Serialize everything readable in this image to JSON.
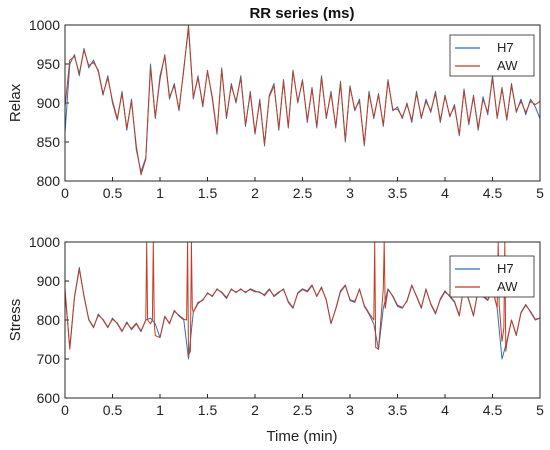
{
  "chart_data": [
    {
      "type": "line",
      "title": "RR series (ms)",
      "xlabel": "",
      "ylabel": "Relax",
      "xlim": [
        0,
        5
      ],
      "ylim": [
        800,
        1000
      ],
      "xticks": [
        "0",
        "0.5",
        "1",
        "1.5",
        "2",
        "2.5",
        "3",
        "3.5",
        "4",
        "4.5",
        "5"
      ],
      "yticks": [
        "800",
        "850",
        "900",
        "950",
        "1000"
      ],
      "grid": false,
      "legend_position": "top-right",
      "series": [
        {
          "name": "H7",
          "color": "#2f6fb5",
          "x": [
            0,
            0.05,
            0.1,
            0.15,
            0.2,
            0.25,
            0.3,
            0.35,
            0.4,
            0.45,
            0.5,
            0.55,
            0.6,
            0.65,
            0.7,
            0.75,
            0.8,
            0.85,
            0.9,
            0.95,
            1.0,
            1.05,
            1.1,
            1.15,
            1.2,
            1.25,
            1.3,
            1.35,
            1.4,
            1.45,
            1.5,
            1.55,
            1.6,
            1.65,
            1.7,
            1.75,
            1.8,
            1.85,
            1.9,
            1.95,
            2.0,
            2.05,
            2.1,
            2.15,
            2.2,
            2.25,
            2.3,
            2.35,
            2.4,
            2.45,
            2.5,
            2.55,
            2.6,
            2.65,
            2.7,
            2.75,
            2.8,
            2.85,
            2.9,
            2.95,
            3.0,
            3.05,
            3.1,
            3.15,
            3.2,
            3.25,
            3.3,
            3.35,
            3.4,
            3.45,
            3.5,
            3.55,
            3.6,
            3.65,
            3.7,
            3.75,
            3.8,
            3.85,
            3.9,
            3.95,
            4.0,
            4.05,
            4.1,
            4.15,
            4.2,
            4.25,
            4.3,
            4.35,
            4.4,
            4.45,
            4.5,
            4.55,
            4.6,
            4.65,
            4.7,
            4.75,
            4.8,
            4.85,
            4.9,
            4.95,
            5.0
          ],
          "y": [
            862,
            950,
            962,
            935,
            970,
            945,
            955,
            940,
            910,
            935,
            900,
            878,
            915,
            865,
            905,
            840,
            812,
            830,
            950,
            880,
            935,
            960,
            905,
            925,
            890,
            945,
            995,
            905,
            935,
            895,
            942,
            905,
            860,
            945,
            880,
            925,
            900,
            935,
            870,
            915,
            860,
            905,
            845,
            910,
            925,
            865,
            930,
            868,
            942,
            900,
            930,
            875,
            920,
            868,
            935,
            880,
            915,
            868,
            928,
            850,
            922,
            890,
            905,
            845,
            915,
            880,
            912,
            870,
            930,
            890,
            895,
            880,
            900,
            875,
            915,
            880,
            905,
            888,
            915,
            875,
            910,
            882,
            898,
            858,
            918,
            872,
            910,
            865,
            908,
            885,
            935,
            880,
            920,
            878,
            925,
            888,
            905,
            885,
            905,
            895,
            880
          ]
        },
        {
          "name": "AW",
          "color": "#c23b22",
          "x": [
            0,
            0.05,
            0.1,
            0.15,
            0.2,
            0.25,
            0.3,
            0.35,
            0.4,
            0.45,
            0.5,
            0.55,
            0.6,
            0.65,
            0.7,
            0.75,
            0.8,
            0.85,
            0.9,
            0.95,
            1.0,
            1.05,
            1.1,
            1.15,
            1.2,
            1.25,
            1.3,
            1.35,
            1.4,
            1.45,
            1.5,
            1.55,
            1.6,
            1.65,
            1.7,
            1.75,
            1.8,
            1.85,
            1.9,
            1.95,
            2.0,
            2.05,
            2.1,
            2.15,
            2.2,
            2.25,
            2.3,
            2.35,
            2.4,
            2.45,
            2.5,
            2.55,
            2.6,
            2.65,
            2.7,
            2.75,
            2.8,
            2.85,
            2.9,
            2.95,
            3.0,
            3.05,
            3.1,
            3.15,
            3.2,
            3.25,
            3.3,
            3.35,
            3.4,
            3.45,
            3.5,
            3.55,
            3.6,
            3.65,
            3.7,
            3.75,
            3.8,
            3.85,
            3.9,
            3.95,
            4.0,
            4.05,
            4.1,
            4.15,
            4.2,
            4.25,
            4.3,
            4.35,
            4.4,
            4.45,
            4.5,
            4.55,
            4.6,
            4.65,
            4.7,
            4.75,
            4.8,
            4.85,
            4.9,
            4.95,
            5.0
          ],
          "y": [
            895,
            955,
            960,
            938,
            968,
            948,
            952,
            942,
            912,
            932,
            903,
            880,
            912,
            868,
            902,
            845,
            808,
            828,
            945,
            882,
            930,
            962,
            908,
            922,
            892,
            942,
            1000,
            908,
            932,
            898,
            940,
            908,
            862,
            942,
            882,
            922,
            902,
            932,
            872,
            912,
            862,
            902,
            848,
            908,
            922,
            868,
            928,
            870,
            940,
            902,
            928,
            878,
            918,
            870,
            932,
            882,
            912,
            870,
            925,
            853,
            920,
            892,
            902,
            848,
            912,
            882,
            910,
            872,
            928,
            892,
            892,
            882,
            898,
            878,
            912,
            882,
            902,
            890,
            912,
            878,
            908,
            884,
            895,
            860,
            915,
            875,
            908,
            868,
            905,
            888,
            932,
            882,
            918,
            880,
            922,
            890,
            902,
            888,
            902,
            898,
            902
          ]
        }
      ]
    },
    {
      "type": "line",
      "title": "",
      "xlabel": "Time (min)",
      "ylabel": "Stress",
      "xlim": [
        0,
        5
      ],
      "ylim": [
        600,
        1000
      ],
      "xticks": [
        "0",
        "0.5",
        "1",
        "1.5",
        "2",
        "2.5",
        "3",
        "3.5",
        "4",
        "4.5",
        "5"
      ],
      "yticks": [
        "600",
        "700",
        "800",
        "900",
        "1000"
      ],
      "grid": false,
      "legend_position": "top-right",
      "series": [
        {
          "name": "H7",
          "color": "#2f6fb5",
          "x": [
            0,
            0.05,
            0.1,
            0.15,
            0.2,
            0.25,
            0.3,
            0.35,
            0.4,
            0.45,
            0.5,
            0.55,
            0.6,
            0.65,
            0.7,
            0.75,
            0.8,
            0.85,
            0.9,
            0.95,
            1.0,
            1.05,
            1.1,
            1.15,
            1.2,
            1.25,
            1.3,
            1.35,
            1.4,
            1.45,
            1.5,
            1.55,
            1.6,
            1.65,
            1.7,
            1.75,
            1.8,
            1.85,
            1.9,
            1.95,
            2.0,
            2.05,
            2.1,
            2.15,
            2.2,
            2.25,
            2.3,
            2.35,
            2.4,
            2.45,
            2.5,
            2.55,
            2.6,
            2.65,
            2.7,
            2.75,
            2.8,
            2.85,
            2.9,
            2.95,
            3.0,
            3.05,
            3.1,
            3.15,
            3.2,
            3.25,
            3.3,
            3.35,
            3.4,
            3.45,
            3.5,
            3.55,
            3.6,
            3.65,
            3.7,
            3.75,
            3.8,
            3.85,
            3.9,
            3.95,
            4.0,
            4.05,
            4.1,
            4.15,
            4.2,
            4.25,
            4.3,
            4.35,
            4.4,
            4.45,
            4.5,
            4.55,
            4.6,
            4.65,
            4.7,
            4.75,
            4.8,
            4.85,
            4.9,
            4.95,
            5.0
          ],
          "y": [
            870,
            730,
            860,
            935,
            860,
            800,
            780,
            815,
            800,
            780,
            805,
            790,
            770,
            795,
            775,
            790,
            770,
            800,
            805,
            790,
            755,
            810,
            790,
            825,
            810,
            800,
            700,
            820,
            845,
            850,
            870,
            860,
            880,
            870,
            855,
            880,
            870,
            880,
            870,
            880,
            875,
            870,
            865,
            880,
            860,
            870,
            880,
            845,
            830,
            870,
            880,
            875,
            890,
            860,
            885,
            850,
            790,
            830,
            875,
            890,
            850,
            845,
            880,
            835,
            815,
            790,
            725,
            830,
            880,
            860,
            835,
            830,
            850,
            890,
            860,
            830,
            880,
            840,
            815,
            855,
            875,
            860,
            845,
            810,
            890,
            850,
            810,
            880,
            860,
            850,
            880,
            830,
            700,
            745,
            800,
            760,
            820,
            840,
            820,
            800,
            805
          ]
        },
        {
          "name": "AW",
          "color": "#c23b22",
          "x": [
            0,
            0.05,
            0.1,
            0.15,
            0.2,
            0.25,
            0.3,
            0.35,
            0.4,
            0.45,
            0.5,
            0.55,
            0.6,
            0.65,
            0.7,
            0.75,
            0.8,
            0.85,
            0.86,
            0.87,
            0.9,
            0.92,
            0.93,
            0.94,
            0.95,
            1.0,
            1.05,
            1.1,
            1.15,
            1.2,
            1.25,
            1.28,
            1.29,
            1.3,
            1.32,
            1.33,
            1.34,
            1.35,
            1.4,
            1.45,
            1.5,
            1.55,
            1.6,
            1.65,
            1.7,
            1.75,
            1.8,
            1.85,
            1.9,
            1.95,
            2.0,
            2.05,
            2.1,
            2.15,
            2.2,
            2.25,
            2.3,
            2.35,
            2.4,
            2.45,
            2.5,
            2.55,
            2.6,
            2.65,
            2.7,
            2.75,
            2.8,
            2.85,
            2.9,
            2.95,
            3.0,
            3.05,
            3.1,
            3.15,
            3.2,
            3.25,
            3.26,
            3.27,
            3.3,
            3.35,
            3.36,
            3.37,
            3.4,
            3.45,
            3.5,
            3.55,
            3.6,
            3.65,
            3.7,
            3.75,
            3.8,
            3.85,
            3.9,
            3.95,
            4.0,
            4.05,
            4.1,
            4.15,
            4.2,
            4.25,
            4.3,
            4.35,
            4.4,
            4.45,
            4.5,
            4.55,
            4.56,
            4.57,
            4.6,
            4.62,
            4.63,
            4.64,
            4.65,
            4.7,
            4.75,
            4.8,
            4.85,
            4.9,
            4.95,
            5.0
          ],
          "y": [
            880,
            725,
            858,
            930,
            862,
            802,
            782,
            812,
            802,
            782,
            802,
            792,
            772,
            792,
            778,
            792,
            772,
            800,
            1000,
            800,
            790,
            800,
            1000,
            790,
            760,
            755,
            808,
            792,
            822,
            812,
            802,
            800,
            1000,
            710,
            720,
            1000,
            830,
            820,
            842,
            852,
            868,
            862,
            878,
            872,
            858,
            878,
            872,
            878,
            872,
            878,
            872,
            872,
            862,
            878,
            862,
            872,
            878,
            848,
            832,
            868,
            878,
            872,
            888,
            862,
            882,
            852,
            792,
            828,
            872,
            888,
            852,
            848,
            878,
            838,
            818,
            800,
            1000,
            730,
            725,
            880,
            1000,
            830,
            878,
            862,
            838,
            832,
            848,
            888,
            862,
            832,
            878,
            842,
            818,
            852,
            872,
            862,
            848,
            812,
            888,
            852,
            812,
            878,
            862,
            852,
            878,
            832,
            1000,
            840,
            745,
            780,
            1000,
            720,
            740,
            800,
            762,
            818,
            838,
            822,
            802,
            805
          ]
        }
      ]
    }
  ]
}
